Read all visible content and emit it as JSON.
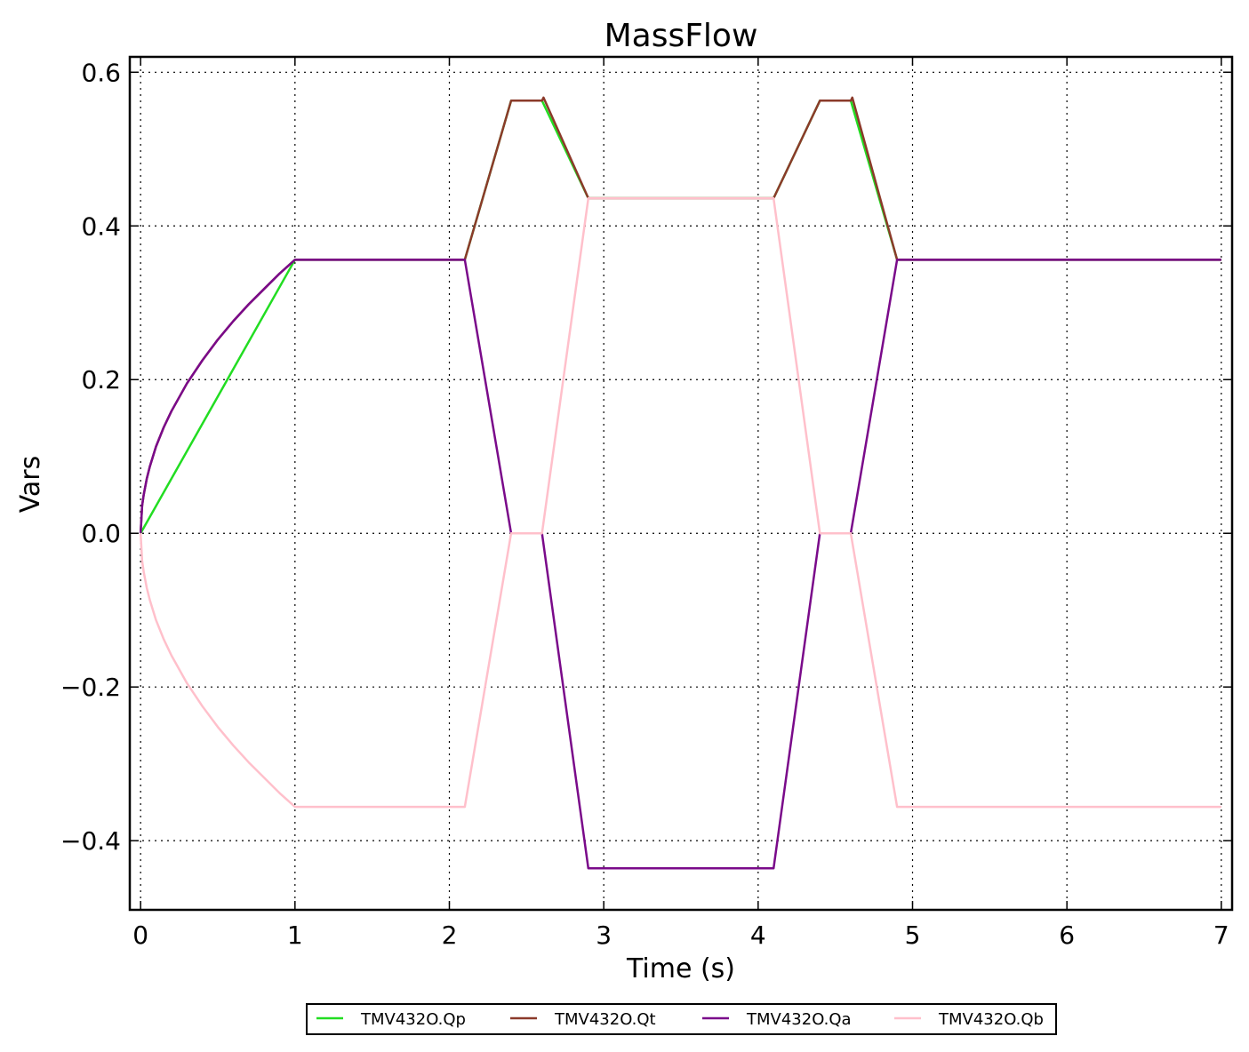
{
  "chart_data": {
    "type": "line",
    "title": "MassFlow",
    "xlabel": "Time (s)",
    "ylabel": "Vars",
    "xlim": [
      -0.07,
      7.07
    ],
    "ylim": [
      -0.49,
      0.62
    ],
    "grid": true,
    "legend_position": "bottom-center",
    "xticks": [
      0,
      1,
      2,
      3,
      4,
      5,
      6,
      7
    ],
    "xtick_labels": [
      "0",
      "1",
      "2",
      "3",
      "4",
      "5",
      "6",
      "7"
    ],
    "yticks": [
      -0.4,
      -0.2,
      0.0,
      0.2,
      0.4,
      0.6
    ],
    "ytick_labels": [
      "−0.4",
      "−0.2",
      "0.0",
      "0.2",
      "0.4",
      "0.6"
    ],
    "series": [
      {
        "name": "TMV432O.Qp",
        "color": "#22dd22",
        "x": [
          0,
          1,
          2.1,
          2.4,
          2.6,
          2.9,
          4.1,
          4.4,
          4.6,
          4.9,
          7
        ],
        "y": [
          0,
          0.356,
          0.356,
          0.563,
          0.563,
          0.436,
          0.436,
          0.563,
          0.563,
          0.356,
          0.356
        ]
      },
      {
        "name": "TMV432O.Qt",
        "color": "#8b3a2a",
        "x": [
          0,
          0.01,
          0.02,
          0.04,
          0.06,
          0.08,
          0.1,
          0.15,
          0.2,
          0.3,
          0.4,
          0.5,
          0.6,
          0.7,
          0.8,
          0.9,
          1.0,
          2.1,
          2.4,
          2.6,
          2.61,
          2.9,
          4.1,
          4.4,
          4.6,
          4.61,
          4.9,
          7
        ],
        "y": [
          0,
          0.036,
          0.05,
          0.071,
          0.087,
          0.1,
          0.113,
          0.138,
          0.159,
          0.195,
          0.225,
          0.252,
          0.276,
          0.298,
          0.318,
          0.338,
          0.356,
          0.356,
          0.563,
          0.563,
          0.567,
          0.436,
          0.436,
          0.563,
          0.563,
          0.567,
          0.356,
          0.356
        ]
      },
      {
        "name": "TMV432O.Qa",
        "color": "#7a0a8a",
        "x": [
          0,
          0.01,
          0.02,
          0.04,
          0.06,
          0.08,
          0.1,
          0.15,
          0.2,
          0.3,
          0.4,
          0.5,
          0.6,
          0.7,
          0.8,
          0.9,
          1.0,
          2.1,
          2.4,
          2.6,
          2.9,
          4.1,
          4.4,
          4.6,
          4.9,
          7
        ],
        "y": [
          0,
          0.036,
          0.05,
          0.071,
          0.087,
          0.1,
          0.113,
          0.138,
          0.159,
          0.195,
          0.225,
          0.252,
          0.276,
          0.298,
          0.318,
          0.338,
          0.356,
          0.356,
          0,
          0,
          -0.436,
          -0.436,
          0,
          0,
          0.356,
          0.356
        ]
      },
      {
        "name": "TMV432O.Qb",
        "color": "#ffc0cb",
        "x": [
          0,
          0.01,
          0.02,
          0.04,
          0.06,
          0.08,
          0.1,
          0.15,
          0.2,
          0.3,
          0.4,
          0.5,
          0.6,
          0.7,
          0.8,
          0.9,
          1.0,
          2.1,
          2.4,
          2.6,
          2.9,
          4.1,
          4.4,
          4.6,
          4.9,
          7
        ],
        "y": [
          0,
          -0.036,
          -0.05,
          -0.071,
          -0.087,
          -0.1,
          -0.113,
          -0.138,
          -0.159,
          -0.195,
          -0.225,
          -0.252,
          -0.276,
          -0.298,
          -0.318,
          -0.338,
          -0.356,
          -0.356,
          0,
          0,
          0.436,
          0.436,
          0,
          0,
          -0.356,
          -0.356
        ]
      }
    ]
  }
}
